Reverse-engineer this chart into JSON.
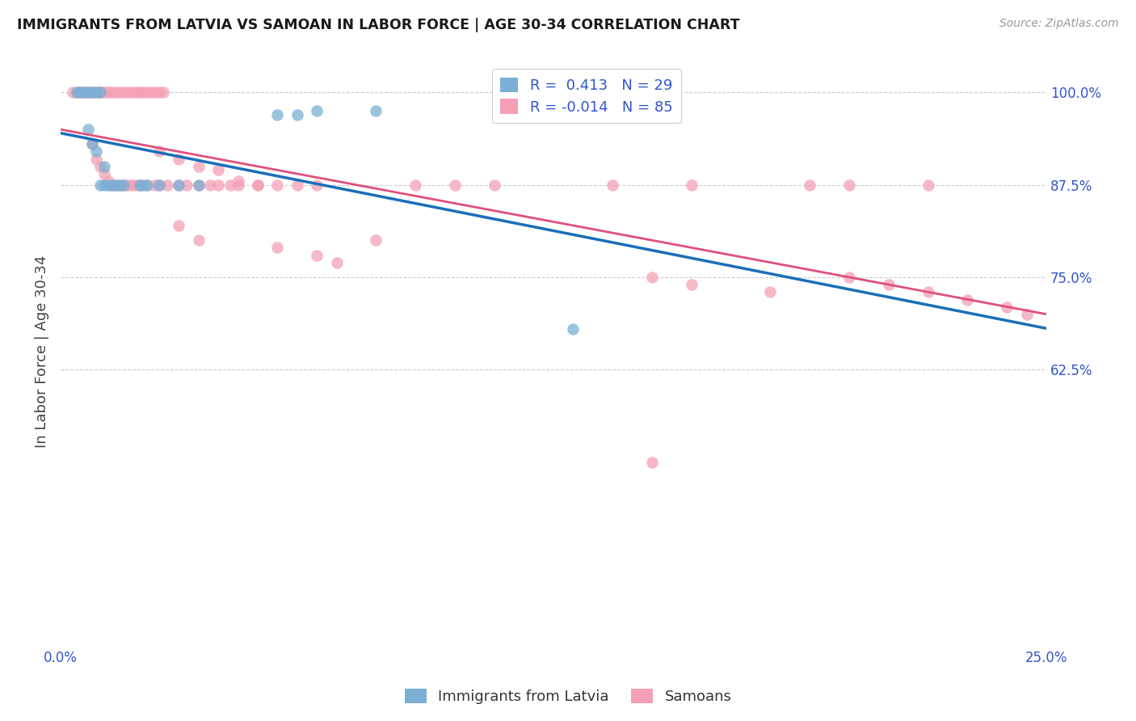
{
  "title": "IMMIGRANTS FROM LATVIA VS SAMOAN IN LABOR FORCE | AGE 30-34 CORRELATION CHART",
  "source": "Source: ZipAtlas.com",
  "ylabel": "In Labor Force | Age 30-34",
  "xlim": [
    0.0,
    0.25
  ],
  "ylim": [
    0.25,
    1.05
  ],
  "latvia_R": 0.413,
  "latvia_N": 29,
  "samoan_R": -0.014,
  "samoan_N": 85,
  "latvia_color": "#7bafd4",
  "samoan_color": "#f4a0b5",
  "latvia_line_color": "#1a6fba",
  "samoan_line_color": "#e0507a",
  "background_color": "#ffffff",
  "grid_color": "#cccccc",
  "latvia_x": [
    0.004,
    0.005,
    0.006,
    0.007,
    0.007,
    0.008,
    0.008,
    0.009,
    0.009,
    0.01,
    0.01,
    0.011,
    0.011,
    0.012,
    0.013,
    0.014,
    0.015,
    0.016,
    0.02,
    0.021,
    0.022,
    0.025,
    0.03,
    0.035,
    0.055,
    0.06,
    0.065,
    0.08,
    0.13
  ],
  "latvia_y": [
    1.0,
    1.0,
    1.0,
    1.0,
    0.95,
    1.0,
    0.93,
    1.0,
    0.92,
    1.0,
    0.875,
    0.9,
    0.875,
    0.875,
    0.875,
    0.875,
    0.875,
    0.875,
    0.875,
    0.875,
    0.875,
    0.875,
    0.875,
    0.875,
    0.97,
    0.97,
    0.975,
    0.975,
    0.68
  ],
  "samoan_x": [
    0.003,
    0.004,
    0.005,
    0.006,
    0.006,
    0.007,
    0.007,
    0.008,
    0.009,
    0.01,
    0.01,
    0.011,
    0.012,
    0.013,
    0.014,
    0.015,
    0.016,
    0.017,
    0.018,
    0.019,
    0.02,
    0.021,
    0.022,
    0.023,
    0.024,
    0.025,
    0.026,
    0.008,
    0.009,
    0.01,
    0.011,
    0.012,
    0.013,
    0.014,
    0.015,
    0.016,
    0.017,
    0.018,
    0.019,
    0.02,
    0.022,
    0.024,
    0.025,
    0.027,
    0.03,
    0.032,
    0.035,
    0.038,
    0.04,
    0.043,
    0.045,
    0.05,
    0.025,
    0.03,
    0.035,
    0.04,
    0.045,
    0.05,
    0.055,
    0.06,
    0.065,
    0.09,
    0.1,
    0.11,
    0.14,
    0.16,
    0.19,
    0.2,
    0.22,
    0.03,
    0.035,
    0.055,
    0.065,
    0.07,
    0.08,
    0.15,
    0.16,
    0.18,
    0.2,
    0.21,
    0.22,
    0.23,
    0.24,
    0.245,
    0.15
  ],
  "samoan_y": [
    1.0,
    1.0,
    1.0,
    1.0,
    1.0,
    1.0,
    1.0,
    1.0,
    1.0,
    1.0,
    1.0,
    1.0,
    1.0,
    1.0,
    1.0,
    1.0,
    1.0,
    1.0,
    1.0,
    1.0,
    1.0,
    1.0,
    1.0,
    1.0,
    1.0,
    1.0,
    1.0,
    0.93,
    0.91,
    0.9,
    0.89,
    0.88,
    0.875,
    0.875,
    0.875,
    0.875,
    0.875,
    0.875,
    0.875,
    0.875,
    0.875,
    0.875,
    0.875,
    0.875,
    0.875,
    0.875,
    0.875,
    0.875,
    0.875,
    0.875,
    0.875,
    0.875,
    0.92,
    0.91,
    0.9,
    0.895,
    0.88,
    0.875,
    0.875,
    0.875,
    0.875,
    0.875,
    0.875,
    0.875,
    0.875,
    0.875,
    0.875,
    0.875,
    0.875,
    0.82,
    0.8,
    0.79,
    0.78,
    0.77,
    0.8,
    0.75,
    0.74,
    0.73,
    0.75,
    0.74,
    0.73,
    0.72,
    0.71,
    0.7,
    0.5
  ]
}
